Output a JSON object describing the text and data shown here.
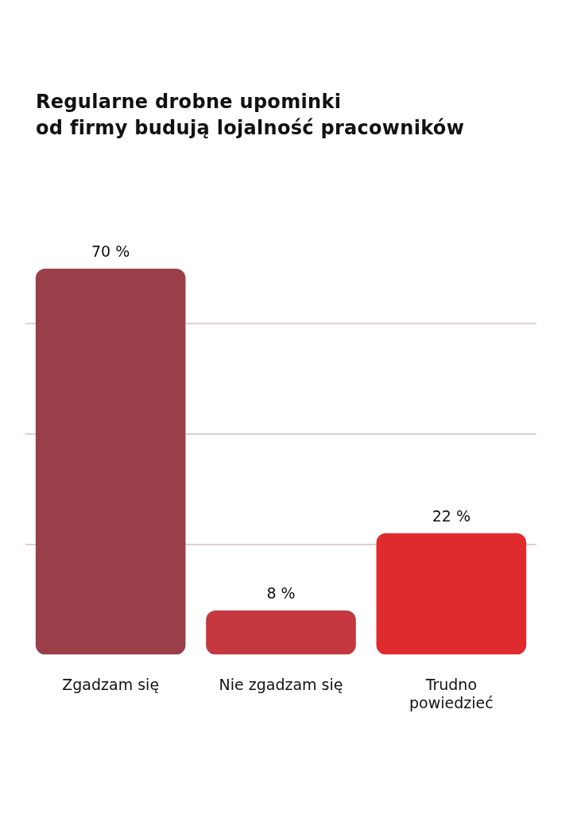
{
  "chart_data": {
    "type": "bar",
    "title": "Regularne drobne upominki\nod firmy budują lojalność pracowników",
    "categories": [
      "Zgadzam się",
      "Nie zgadzam się",
      "Trudno\npowiedzieć"
    ],
    "values": [
      70,
      8,
      22
    ],
    "colors": [
      "#9a3f49",
      "#c53840",
      "#df2a2e"
    ],
    "value_labels": [
      "70 %",
      "8 %",
      "22 %"
    ],
    "ylim": [
      0,
      70
    ],
    "yticks": [
      {
        "value": 20,
        "label": null
      },
      {
        "value": 40,
        "label": null
      },
      {
        "value": 60,
        "label": null
      }
    ],
    "grid": "y",
    "tick_labels": "x"
  }
}
